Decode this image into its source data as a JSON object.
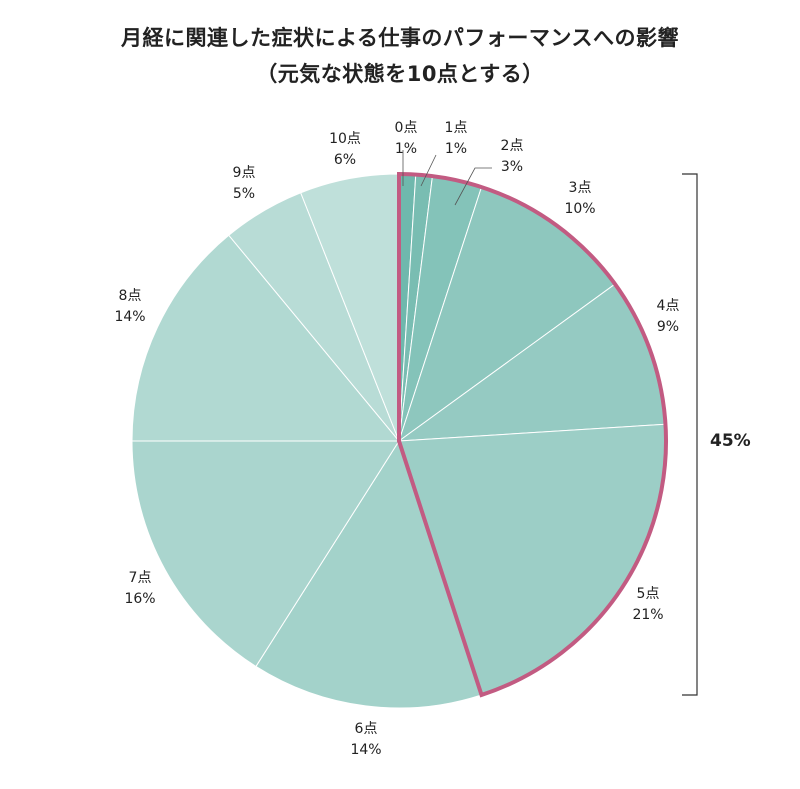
{
  "chart_data": {
    "type": "pie",
    "title_line1": "月経に関連した症状による仕事のパフォーマンスへの影響",
    "title_line2": "（元気な状態を10点とする）",
    "slices": [
      {
        "label": "0点",
        "value": 1,
        "value_label": "1%"
      },
      {
        "label": "1点",
        "value": 1,
        "value_label": "1%"
      },
      {
        "label": "2点",
        "value": 3,
        "value_label": "3%"
      },
      {
        "label": "3点",
        "value": 10,
        "value_label": "10%"
      },
      {
        "label": "4点",
        "value": 9,
        "value_label": "9%"
      },
      {
        "label": "5点",
        "value": 21,
        "value_label": "21%"
      },
      {
        "label": "6点",
        "value": 14,
        "value_label": "14%"
      },
      {
        "label": "7点",
        "value": 16,
        "value_label": "16%"
      },
      {
        "label": "8点",
        "value": 14,
        "value_label": "14%"
      },
      {
        "label": "9点",
        "value": 5,
        "value_label": "5%"
      },
      {
        "label": "10点",
        "value": 6,
        "value_label": "6%"
      }
    ],
    "colors": [
      "#6fb8ad",
      "#79bdb2",
      "#84c3b9",
      "#8ec7be",
      "#95cac2",
      "#9ccec6",
      "#a3d2ca",
      "#aad5ce",
      "#b1d9d2",
      "#b8dcd6",
      "#bfe0da"
    ],
    "highlight": {
      "slice_labels": [
        "0点",
        "1点",
        "2点",
        "3点",
        "4点",
        "5点"
      ],
      "total_label": "45%",
      "outline_color": "#c25b82"
    }
  }
}
